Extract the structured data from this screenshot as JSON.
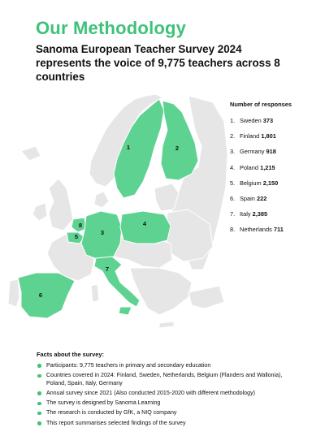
{
  "header": {
    "title": "Our Methodology",
    "subtitle": "Sanoma European Teacher Survey 2024 represents the voice of 9,775 teachers across 8 countries"
  },
  "colors": {
    "accent": "#3ec27a",
    "land": "#e6e6e6",
    "highlight": "#5ed391"
  },
  "responses": {
    "heading": "Number of responses",
    "items": [
      {
        "num": "1.",
        "country": "Sweden",
        "value": "373"
      },
      {
        "num": "2.",
        "country": "Finland",
        "value": "1,801"
      },
      {
        "num": "3.",
        "country": "Germany",
        "value": "918"
      },
      {
        "num": "4.",
        "country": "Poland",
        "value": "1,215"
      },
      {
        "num": "5.",
        "country": "Belgium",
        "value": "2,150"
      },
      {
        "num": "6.",
        "country": "Spain",
        "value": "222"
      },
      {
        "num": "7.",
        "country": "Italy",
        "value": "2,385"
      },
      {
        "num": "8.",
        "country": "Netherlands",
        "value": "711"
      }
    ]
  },
  "map_labels": {
    "sweden": "1",
    "finland": "2",
    "germany": "3",
    "poland": "4",
    "belgium": "5",
    "spain": "6",
    "italy": "7",
    "netherlands": "8"
  },
  "facts": {
    "heading": "Facts about the survey:",
    "items": [
      "Participants: 9,775 teachers in primary and secondary education",
      "Countries covered in 2024: Finland, Sweden, Netherlands, Belgium (Flanders and Wallonia), Poland, Spain, Italy, Germany",
      "Annual survey since 2021 (Also conducted 2015-2020 with different methodology)",
      "The survey is designed by Sanoma Learning",
      "The research is conducted by GfK, a NIQ company",
      "This report summarises selected findings of the survey"
    ]
  }
}
